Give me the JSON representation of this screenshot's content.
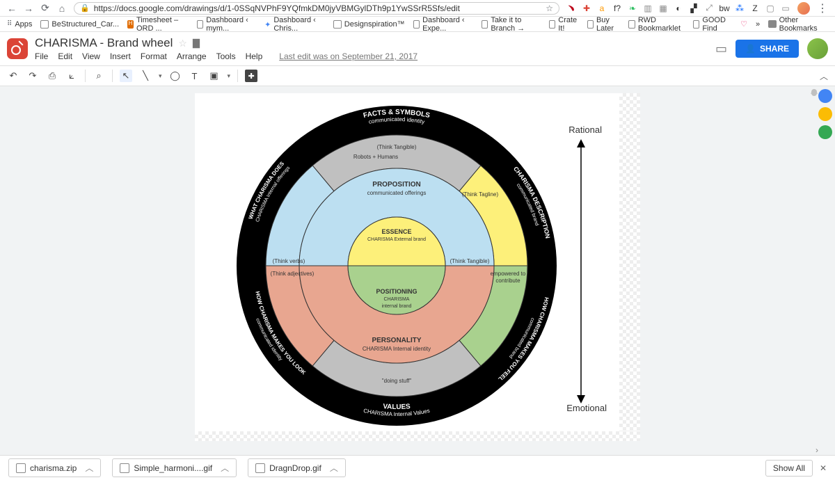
{
  "browser": {
    "url": "https://docs.google.com/drawings/d/1-0SSqNVPhF9YQfmkDM0jyVBMGylDTh9p1YwSSrR5Sfs/edit",
    "ext_icons": [
      {
        "name": "pinterest",
        "glyph": "﹅",
        "color": "#bd081c"
      },
      {
        "name": "plus",
        "glyph": "✚",
        "color": "#db4437"
      },
      {
        "name": "amazon",
        "glyph": "a",
        "color": "#ff9900"
      },
      {
        "name": "fontface",
        "glyph": "f?",
        "color": "#333"
      },
      {
        "name": "evernote",
        "glyph": "❧",
        "color": "#2dbe60"
      },
      {
        "name": "pocket",
        "glyph": "▥",
        "color": "#888"
      },
      {
        "name": "grid",
        "glyph": "▦",
        "color": "#888"
      },
      {
        "name": "dev",
        "glyph": "◐",
        "color": "#333"
      },
      {
        "name": "qr",
        "glyph": "▞",
        "color": "#333"
      },
      {
        "name": "expand",
        "glyph": "⤢",
        "color": "#888"
      },
      {
        "name": "bw",
        "glyph": "bw",
        "color": "#333"
      },
      {
        "name": "dropbox",
        "glyph": "⁂",
        "color": "#0061ff"
      },
      {
        "name": "zotero",
        "glyph": "Z",
        "color": "#333"
      },
      {
        "name": "cast",
        "glyph": "▢",
        "color": "#888"
      },
      {
        "name": "chat",
        "glyph": "▭",
        "color": "#888"
      }
    ]
  },
  "bookmarks": {
    "apps_label": "Apps",
    "items": [
      "BeStructured_Car...",
      "Timesheet – ORD ...",
      "Dashboard ‹ mym...",
      "Dashboard ‹ Chris...",
      "Designspiration™",
      "Dashboard ‹ Expe...",
      "Take it to Branch →",
      "Crate It!",
      "Buy Later",
      "RWD Bookmarklet",
      "GOOD Find"
    ],
    "other": "Other Bookmarks",
    "overflow": "»"
  },
  "doc": {
    "title": "CHARISMA - Brand wheel",
    "menus": [
      "File",
      "Edit",
      "View",
      "Insert",
      "Format",
      "Arrange",
      "Tools",
      "Help"
    ],
    "lastedit": "Last edit was on September 21, 2017",
    "share_label": "SHARE"
  },
  "toolbar": {
    "undo": "↶",
    "redo": "↷",
    "print": "⎙",
    "paint": "⟀",
    "zoom": "⌕",
    "cursor": "↖",
    "line": "╲",
    "shape": "◯",
    "text": "T",
    "image": "▣",
    "comment": "▤",
    "plus": "✚"
  },
  "downloads": {
    "items": [
      "charisma.zip",
      "Simple_harmoni....gif",
      "DragnDrop.gif"
    ],
    "show_all": "Show All"
  },
  "axis": {
    "top": "Rational",
    "bottom": "Emotional"
  },
  "wheel": {
    "outer_radius": 230,
    "ring2_radius": 188,
    "ring3_radius": 140,
    "core_radius": 70,
    "bg_black": "#000000",
    "colors": {
      "blue": "#bcdff1",
      "yellow": "#fdf07a",
      "salmon": "#e8a690",
      "green": "#a9d18e",
      "gray": "#c0c0c0"
    },
    "ring1_labels": {
      "top": {
        "l1": "FACTS & SYMBOLS",
        "l2": "communicated identity"
      },
      "left_upper": {
        "l1": "WHAT CHARISMA DOES",
        "l2": "CHARISMA Internal offerings"
      },
      "left_lower": {
        "l1": "HOW CHARISMA MAKES YOU LOOK",
        "l2": "communicated identity"
      },
      "right_upper": {
        "l1": "CHARISMA DESCRIPTION",
        "l2": "communicated brand"
      },
      "right_lower": {
        "l1": "HOW CHARISMA MAKES YOU FEEL",
        "l2": "communicated brand"
      },
      "bottom": {
        "l1": "VALUES",
        "l2": "CHARISMA Internal Values"
      }
    },
    "ring2_notes": {
      "top1": "(Think Tangible)",
      "top2": "Robots + Humans",
      "right": "(Think Tagline)",
      "left": "(Think verbs)",
      "bottom": "\"doing stuff\"",
      "left_lower": "(Think adjectives)",
      "right_lower": "empowered to\ncontribute",
      "center_right_note": "(Think Tangible)"
    },
    "ring3_labels": {
      "top": {
        "l1": "PROPOSITION",
        "l2": "communicated offerings"
      },
      "bottom": {
        "l1": "PERSONALITY",
        "l2": "CHARISMA Internal identity"
      }
    },
    "core_labels": {
      "top": {
        "l1": "ESSENCE",
        "l2": "CHARISMA External brand"
      },
      "bottom": {
        "l1": "POSITIONING",
        "l2": "CHARISMA",
        "l3": "internal brand"
      }
    }
  }
}
